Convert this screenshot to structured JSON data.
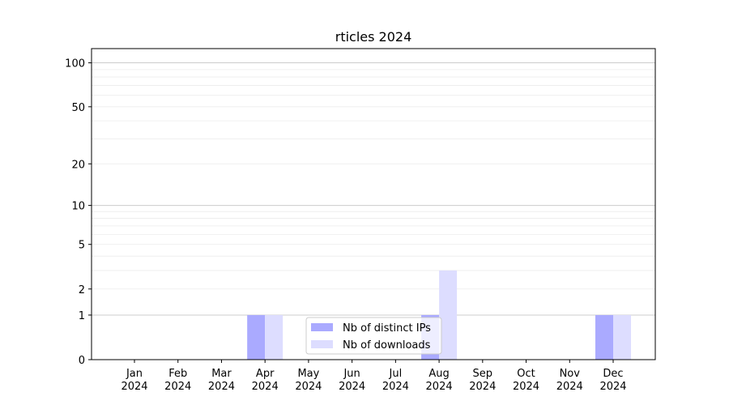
{
  "chart_data": {
    "type": "bar",
    "title": "rticles 2024",
    "categories": [
      "Jan\n2024",
      "Feb\n2024",
      "Mar\n2024",
      "Apr\n2024",
      "May\n2024",
      "Jun\n2024",
      "Jul\n2024",
      "Aug\n2024",
      "Sep\n2024",
      "Oct\n2024",
      "Nov\n2024",
      "Dec\n2024"
    ],
    "series": [
      {
        "name": "Nb of distinct IPs",
        "color": "#aaaaff",
        "values": [
          0,
          0,
          0,
          1,
          0,
          0,
          0,
          1,
          0,
          0,
          0,
          1
        ]
      },
      {
        "name": "Nb of downloads",
        "color": "#ddddff",
        "values": [
          0,
          0,
          0,
          1,
          0,
          0,
          0,
          3,
          0,
          0,
          0,
          1
        ]
      }
    ],
    "yscale": "log1p",
    "ylim": [
      0,
      125
    ],
    "yticks": [
      0,
      1,
      2,
      5,
      10,
      20,
      50,
      100
    ],
    "major_grid": [
      1,
      10,
      100
    ],
    "minor_grid": [
      2,
      3,
      4,
      5,
      6,
      7,
      8,
      9,
      20,
      30,
      40,
      50,
      60,
      70,
      80,
      90
    ],
    "legend": "lower center"
  }
}
